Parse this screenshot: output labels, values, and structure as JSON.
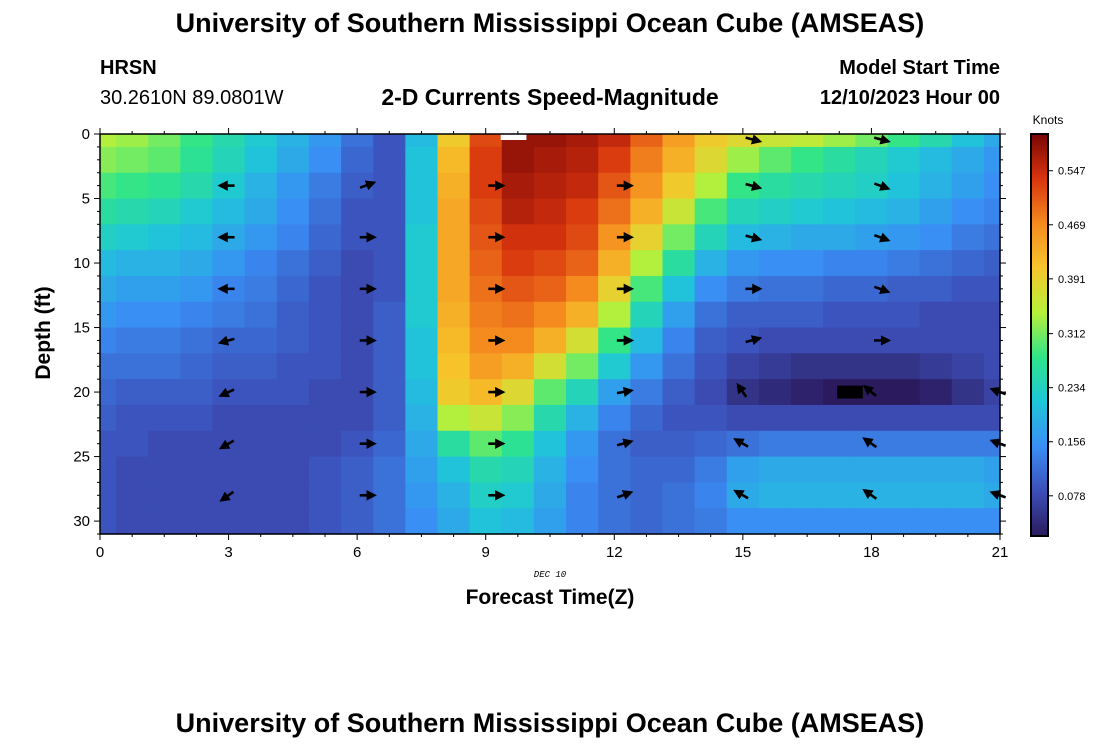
{
  "header": {
    "title": "University of Southern Mississippi Ocean Cube (AMSEAS)",
    "station": "HRSN",
    "coords": "30.2610N  89.0801W",
    "chart_title": "2-D Currents Speed-Magnitude",
    "model_start_label": "Model Start Time",
    "model_start_value": "12/10/2023 Hour 00",
    "date_label": "DEC 10"
  },
  "footer": {
    "title": "University of Southern Mississippi Ocean Cube (AMSEAS)"
  },
  "chart_data": {
    "type": "heatmap",
    "title": "2-D Currents Speed-Magnitude",
    "xlabel": "Forecast Time(Z)",
    "ylabel": "Depth (ft)",
    "xlim": [
      0,
      21
    ],
    "ylim": [
      31,
      0
    ],
    "x_ticks": [
      "0",
      "3",
      "6",
      "9",
      "12",
      "15",
      "18",
      "21"
    ],
    "y_ticks": [
      "0",
      "5",
      "10",
      "15",
      "20",
      "25",
      "30"
    ],
    "colorbar": {
      "unit": "Knots",
      "min": 0.02,
      "max": 0.6,
      "ticks": [
        "0.547",
        "0.469",
        "0.391",
        "0.312",
        "0.234",
        "0.156",
        "0.078"
      ],
      "colors": [
        "#2b1a5e",
        "#3c4fb8",
        "#3a8ef5",
        "#1fc6d9",
        "#2ee58a",
        "#b7f03a",
        "#f6c62c",
        "#f58a1f",
        "#d8340e",
        "#7a0505"
      ]
    },
    "time_columns": [
      0,
      0.75,
      1.5,
      2.25,
      3,
      3.75,
      4.5,
      5.25,
      6,
      6.75,
      7.5,
      8.25,
      9,
      9.75,
      10.5,
      11.25,
      12,
      12.75,
      13.5,
      14.25,
      15,
      15.75,
      16.5,
      17.25,
      18,
      18.75,
      19.5,
      20.25,
      21
    ],
    "depth_rows": [
      0,
      2,
      4,
      6,
      8,
      10,
      12,
      14,
      16,
      18,
      20,
      22,
      24,
      26,
      28,
      30
    ],
    "speeds": [
      [
        0.34,
        0.33,
        0.31,
        0.28,
        0.25,
        0.22,
        0.19,
        0.16,
        0.12,
        0.09,
        0.2,
        0.4,
        0.52,
        0.58,
        0.58,
        0.57,
        0.55,
        0.5,
        0.45,
        0.4,
        0.38,
        0.36,
        0.35,
        0.33,
        0.31,
        0.28,
        0.25,
        0.21,
        0.18
      ],
      [
        0.32,
        0.31,
        0.3,
        0.27,
        0.24,
        0.21,
        0.18,
        0.15,
        0.11,
        0.09,
        0.21,
        0.42,
        0.53,
        0.58,
        0.57,
        0.56,
        0.53,
        0.48,
        0.43,
        0.38,
        0.33,
        0.3,
        0.28,
        0.26,
        0.24,
        0.22,
        0.2,
        0.18,
        0.16
      ],
      [
        0.29,
        0.28,
        0.27,
        0.25,
        0.22,
        0.19,
        0.16,
        0.13,
        0.1,
        0.09,
        0.21,
        0.43,
        0.53,
        0.57,
        0.56,
        0.55,
        0.51,
        0.46,
        0.4,
        0.34,
        0.28,
        0.26,
        0.25,
        0.24,
        0.23,
        0.21,
        0.19,
        0.17,
        0.15
      ],
      [
        0.26,
        0.25,
        0.24,
        0.22,
        0.2,
        0.18,
        0.15,
        0.12,
        0.09,
        0.09,
        0.21,
        0.44,
        0.52,
        0.56,
        0.55,
        0.53,
        0.49,
        0.43,
        0.36,
        0.29,
        0.24,
        0.23,
        0.22,
        0.21,
        0.2,
        0.19,
        0.17,
        0.15,
        0.14
      ],
      [
        0.23,
        0.22,
        0.21,
        0.2,
        0.18,
        0.16,
        0.14,
        0.11,
        0.09,
        0.09,
        0.22,
        0.44,
        0.51,
        0.54,
        0.54,
        0.52,
        0.46,
        0.39,
        0.31,
        0.24,
        0.2,
        0.19,
        0.18,
        0.18,
        0.17,
        0.16,
        0.15,
        0.13,
        0.12
      ],
      [
        0.2,
        0.19,
        0.19,
        0.18,
        0.16,
        0.14,
        0.12,
        0.1,
        0.08,
        0.09,
        0.22,
        0.44,
        0.5,
        0.53,
        0.52,
        0.5,
        0.43,
        0.34,
        0.26,
        0.19,
        0.16,
        0.15,
        0.15,
        0.14,
        0.14,
        0.13,
        0.12,
        0.11,
        0.1
      ],
      [
        0.18,
        0.17,
        0.17,
        0.16,
        0.14,
        0.13,
        0.11,
        0.09,
        0.08,
        0.09,
        0.22,
        0.44,
        0.49,
        0.51,
        0.5,
        0.47,
        0.39,
        0.29,
        0.21,
        0.15,
        0.13,
        0.12,
        0.12,
        0.11,
        0.11,
        0.1,
        0.1,
        0.09,
        0.09
      ],
      [
        0.16,
        0.15,
        0.15,
        0.14,
        0.13,
        0.12,
        0.1,
        0.09,
        0.08,
        0.1,
        0.22,
        0.43,
        0.48,
        0.49,
        0.47,
        0.43,
        0.34,
        0.24,
        0.17,
        0.12,
        0.1,
        0.1,
        0.1,
        0.09,
        0.09,
        0.09,
        0.08,
        0.08,
        0.08
      ],
      [
        0.14,
        0.13,
        0.13,
        0.12,
        0.11,
        0.11,
        0.1,
        0.09,
        0.08,
        0.1,
        0.21,
        0.42,
        0.47,
        0.47,
        0.43,
        0.37,
        0.28,
        0.2,
        0.14,
        0.1,
        0.09,
        0.08,
        0.08,
        0.08,
        0.08,
        0.08,
        0.08,
        0.08,
        0.08
      ],
      [
        0.12,
        0.12,
        0.12,
        0.11,
        0.1,
        0.1,
        0.09,
        0.09,
        0.08,
        0.1,
        0.21,
        0.41,
        0.45,
        0.43,
        0.37,
        0.31,
        0.22,
        0.16,
        0.12,
        0.09,
        0.07,
        0.06,
        0.05,
        0.05,
        0.05,
        0.05,
        0.06,
        0.07,
        0.08
      ],
      [
        0.11,
        0.1,
        0.1,
        0.1,
        0.09,
        0.09,
        0.09,
        0.08,
        0.08,
        0.1,
        0.2,
        0.4,
        0.42,
        0.38,
        0.3,
        0.24,
        0.17,
        0.13,
        0.1,
        0.08,
        0.05,
        0.04,
        0.03,
        0.02,
        0.02,
        0.02,
        0.03,
        0.05,
        0.07
      ],
      [
        0.1,
        0.09,
        0.09,
        0.09,
        0.08,
        0.08,
        0.08,
        0.08,
        0.08,
        0.1,
        0.19,
        0.34,
        0.36,
        0.32,
        0.25,
        0.19,
        0.14,
        0.11,
        0.09,
        0.09,
        0.08,
        0.08,
        0.08,
        0.08,
        0.08,
        0.08,
        0.08,
        0.08,
        0.08
      ],
      [
        0.09,
        0.09,
        0.08,
        0.08,
        0.08,
        0.08,
        0.08,
        0.08,
        0.09,
        0.11,
        0.18,
        0.26,
        0.3,
        0.27,
        0.21,
        0.16,
        0.12,
        0.1,
        0.1,
        0.11,
        0.12,
        0.13,
        0.13,
        0.13,
        0.13,
        0.13,
        0.13,
        0.13,
        0.13
      ],
      [
        0.09,
        0.08,
        0.08,
        0.08,
        0.08,
        0.08,
        0.08,
        0.09,
        0.1,
        0.12,
        0.17,
        0.21,
        0.25,
        0.24,
        0.19,
        0.15,
        0.12,
        0.11,
        0.11,
        0.13,
        0.17,
        0.18,
        0.18,
        0.18,
        0.18,
        0.18,
        0.18,
        0.18,
        0.17
      ],
      [
        0.09,
        0.08,
        0.08,
        0.08,
        0.08,
        0.08,
        0.08,
        0.09,
        0.1,
        0.12,
        0.16,
        0.19,
        0.23,
        0.22,
        0.18,
        0.14,
        0.12,
        0.11,
        0.12,
        0.14,
        0.18,
        0.19,
        0.19,
        0.19,
        0.19,
        0.19,
        0.19,
        0.19,
        0.18
      ],
      [
        0.09,
        0.08,
        0.08,
        0.08,
        0.08,
        0.08,
        0.08,
        0.09,
        0.1,
        0.12,
        0.15,
        0.18,
        0.21,
        0.2,
        0.17,
        0.14,
        0.12,
        0.11,
        0.12,
        0.13,
        0.15,
        0.15,
        0.15,
        0.15,
        0.15,
        0.15,
        0.15,
        0.15,
        0.15
      ]
    ],
    "vectors": [
      {
        "t": 3,
        "d": 4,
        "dir": 180
      },
      {
        "t": 3,
        "d": 8,
        "dir": 180
      },
      {
        "t": 3,
        "d": 12,
        "dir": 180
      },
      {
        "t": 3,
        "d": 16,
        "dir": 195
      },
      {
        "t": 3,
        "d": 20,
        "dir": 205
      },
      {
        "t": 3,
        "d": 24,
        "dir": 210
      },
      {
        "t": 3,
        "d": 28,
        "dir": 215
      },
      {
        "t": 6.2,
        "d": 4,
        "dir": 20
      },
      {
        "t": 6.2,
        "d": 8,
        "dir": 0
      },
      {
        "t": 6.2,
        "d": 12,
        "dir": 0
      },
      {
        "t": 6.2,
        "d": 16,
        "dir": 0
      },
      {
        "t": 6.2,
        "d": 20,
        "dir": 0
      },
      {
        "t": 6.2,
        "d": 24,
        "dir": 0
      },
      {
        "t": 6.2,
        "d": 28,
        "dir": 0
      },
      {
        "t": 9.2,
        "d": 4,
        "dir": 0
      },
      {
        "t": 9.2,
        "d": 8,
        "dir": 0
      },
      {
        "t": 9.2,
        "d": 12,
        "dir": 0
      },
      {
        "t": 9.2,
        "d": 16,
        "dir": 0
      },
      {
        "t": 9.2,
        "d": 20,
        "dir": 0
      },
      {
        "t": 9.2,
        "d": 24,
        "dir": 0
      },
      {
        "t": 9.2,
        "d": 28,
        "dir": 0
      },
      {
        "t": 12.2,
        "d": 4,
        "dir": 0
      },
      {
        "t": 12.2,
        "d": 8,
        "dir": 0
      },
      {
        "t": 12.2,
        "d": 12,
        "dir": 0
      },
      {
        "t": 12.2,
        "d": 16,
        "dir": 0
      },
      {
        "t": 12.2,
        "d": 20,
        "dir": 10
      },
      {
        "t": 12.2,
        "d": 24,
        "dir": 15
      },
      {
        "t": 12.2,
        "d": 28,
        "dir": 20
      },
      {
        "t": 15.2,
        "d": 0.4,
        "dir": -15
      },
      {
        "t": 15.2,
        "d": 4,
        "dir": -15
      },
      {
        "t": 15.2,
        "d": 8,
        "dir": -15
      },
      {
        "t": 15.2,
        "d": 12,
        "dir": 0
      },
      {
        "t": 15.2,
        "d": 16,
        "dir": 15
      },
      {
        "t": 15,
        "d": 20,
        "dir": 125
      },
      {
        "t": 15,
        "d": 24,
        "dir": 150
      },
      {
        "t": 15,
        "d": 28,
        "dir": 150
      },
      {
        "t": 18.2,
        "d": 0.4,
        "dir": -15
      },
      {
        "t": 18.2,
        "d": 4,
        "dir": -20
      },
      {
        "t": 18.2,
        "d": 8,
        "dir": -20
      },
      {
        "t": 18.2,
        "d": 12,
        "dir": -20
      },
      {
        "t": 18.2,
        "d": 16,
        "dir": 0
      },
      {
        "t": 18,
        "d": 20,
        "dir": 140
      },
      {
        "t": 18,
        "d": 24,
        "dir": 145
      },
      {
        "t": 18,
        "d": 28,
        "dir": 145
      },
      {
        "t": 21,
        "d": 20,
        "dir": 160
      },
      {
        "t": 21,
        "d": 24,
        "dir": 160
      },
      {
        "t": 21,
        "d": 28,
        "dir": 160
      }
    ]
  }
}
